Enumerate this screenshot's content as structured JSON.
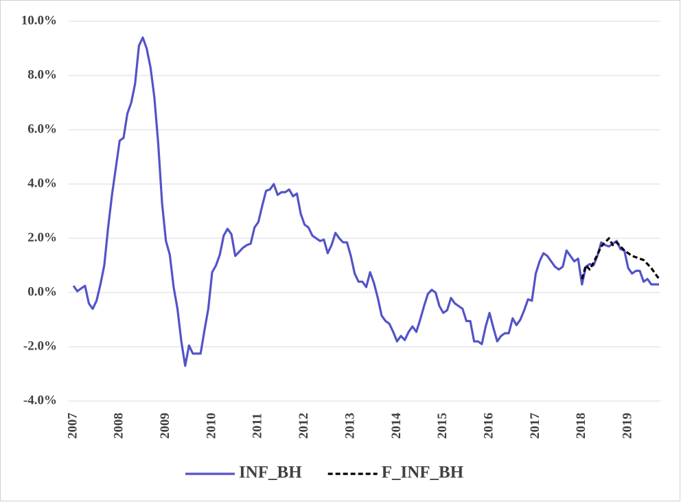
{
  "chart_data": {
    "type": "line",
    "categories": [
      "2007",
      null,
      null,
      null,
      null,
      null,
      null,
      null,
      null,
      null,
      null,
      null,
      "2008",
      null,
      null,
      null,
      null,
      null,
      null,
      null,
      null,
      null,
      null,
      null,
      "2009",
      null,
      null,
      null,
      null,
      null,
      null,
      null,
      null,
      null,
      null,
      null,
      "2010",
      null,
      null,
      null,
      null,
      null,
      null,
      null,
      null,
      null,
      null,
      null,
      "2011",
      null,
      null,
      null,
      null,
      null,
      null,
      null,
      null,
      null,
      null,
      null,
      "2012",
      null,
      null,
      null,
      null,
      null,
      null,
      null,
      null,
      null,
      null,
      null,
      "2013",
      null,
      null,
      null,
      null,
      null,
      null,
      null,
      null,
      null,
      null,
      null,
      "2014",
      null,
      null,
      null,
      null,
      null,
      null,
      null,
      null,
      null,
      null,
      null,
      "2015",
      null,
      null,
      null,
      null,
      null,
      null,
      null,
      null,
      null,
      null,
      null,
      "2016",
      null,
      null,
      null,
      null,
      null,
      null,
      null,
      null,
      null,
      null,
      null,
      "2017",
      null,
      null,
      null,
      null,
      null,
      null,
      null,
      null,
      null,
      null,
      null,
      "2018",
      null,
      null,
      null,
      null,
      null,
      null,
      null,
      null,
      null,
      null,
      null,
      "2019",
      null,
      null,
      null,
      null,
      null,
      null,
      null,
      null
    ],
    "series": [
      {
        "name": "INF_BH",
        "color": "#5353c8",
        "dash": false,
        "values": [
          0.25,
          0.05,
          0.15,
          0.25,
          -0.4,
          -0.6,
          -0.3,
          0.3,
          1.0,
          2.4,
          3.6,
          4.6,
          5.6,
          5.7,
          6.6,
          7.0,
          7.7,
          9.1,
          9.4,
          9.0,
          8.3,
          7.2,
          5.5,
          3.3,
          1.9,
          1.4,
          0.2,
          -0.6,
          -1.8,
          -2.7,
          -1.95,
          -2.25,
          -2.25,
          -2.25,
          -1.4,
          -0.6,
          0.75,
          1.0,
          1.4,
          2.1,
          2.35,
          2.15,
          1.35,
          1.5,
          1.65,
          1.75,
          1.8,
          2.4,
          2.6,
          3.2,
          3.75,
          3.8,
          4.0,
          3.6,
          3.7,
          3.7,
          3.8,
          3.55,
          3.65,
          2.9,
          2.5,
          2.4,
          2.1,
          2.0,
          1.9,
          1.95,
          1.45,
          1.75,
          2.2,
          2.0,
          1.85,
          1.85,
          1.35,
          0.7,
          0.4,
          0.4,
          0.2,
          0.75,
          0.35,
          -0.2,
          -0.85,
          -1.05,
          -1.15,
          -1.45,
          -1.8,
          -1.6,
          -1.75,
          -1.45,
          -1.25,
          -1.45,
          -1.0,
          -0.5,
          -0.05,
          0.1,
          0.0,
          -0.5,
          -0.75,
          -0.65,
          -0.2,
          -0.4,
          -0.5,
          -0.6,
          -1.05,
          -1.05,
          -1.8,
          -1.8,
          -1.9,
          -1.25,
          -0.75,
          -1.3,
          -1.8,
          -1.6,
          -1.5,
          -1.5,
          -0.95,
          -1.2,
          -1.0,
          -0.65,
          -0.25,
          -0.3,
          0.7,
          1.15,
          1.45,
          1.35,
          1.15,
          0.95,
          0.85,
          0.95,
          1.55,
          1.35,
          1.15,
          1.25,
          0.3,
          0.95,
          1.05,
          1.0,
          1.35,
          1.85,
          1.75,
          1.7,
          1.8,
          1.9,
          1.6,
          1.55,
          0.9,
          0.7,
          0.8,
          0.8,
          0.4,
          0.5,
          0.3,
          0.3,
          0.3
        ]
      },
      {
        "name": "F_INF_BH",
        "color": "#000000",
        "dash": true,
        "values": [
          null,
          null,
          null,
          null,
          null,
          null,
          null,
          null,
          null,
          null,
          null,
          null,
          null,
          null,
          null,
          null,
          null,
          null,
          null,
          null,
          null,
          null,
          null,
          null,
          null,
          null,
          null,
          null,
          null,
          null,
          null,
          null,
          null,
          null,
          null,
          null,
          null,
          null,
          null,
          null,
          null,
          null,
          null,
          null,
          null,
          null,
          null,
          null,
          null,
          null,
          null,
          null,
          null,
          null,
          null,
          null,
          null,
          null,
          null,
          null,
          null,
          null,
          null,
          null,
          null,
          null,
          null,
          null,
          null,
          null,
          null,
          null,
          null,
          null,
          null,
          null,
          null,
          null,
          null,
          null,
          null,
          null,
          null,
          null,
          null,
          null,
          null,
          null,
          null,
          null,
          null,
          null,
          null,
          null,
          null,
          null,
          null,
          null,
          null,
          null,
          null,
          null,
          null,
          null,
          null,
          null,
          null,
          null,
          null,
          null,
          null,
          null,
          null,
          null,
          null,
          null,
          null,
          null,
          null,
          null,
          null,
          null,
          null,
          null,
          null,
          null,
          null,
          null,
          null,
          null,
          null,
          null,
          0.5,
          1.0,
          0.85,
          1.1,
          1.4,
          1.7,
          1.85,
          2.0,
          1.75,
          1.85,
          1.7,
          1.55,
          1.45,
          1.35,
          1.3,
          1.25,
          1.2,
          1.05,
          0.9,
          0.7,
          0.5
        ]
      }
    ],
    "ylim": [
      -4,
      10
    ],
    "yticks": [
      {
        "value": -4,
        "label": "-4.0%"
      },
      {
        "value": -2,
        "label": "-2.0%"
      },
      {
        "value": 0,
        "label": "0.0%"
      },
      {
        "value": 2,
        "label": "2.0%"
      },
      {
        "value": 4,
        "label": "4.0%"
      },
      {
        "value": 6,
        "label": "6.0%"
      },
      {
        "value": 8,
        "label": "8.0%"
      },
      {
        "value": 10,
        "label": "10.0%"
      }
    ],
    "grid": true,
    "legend": "bottom"
  }
}
